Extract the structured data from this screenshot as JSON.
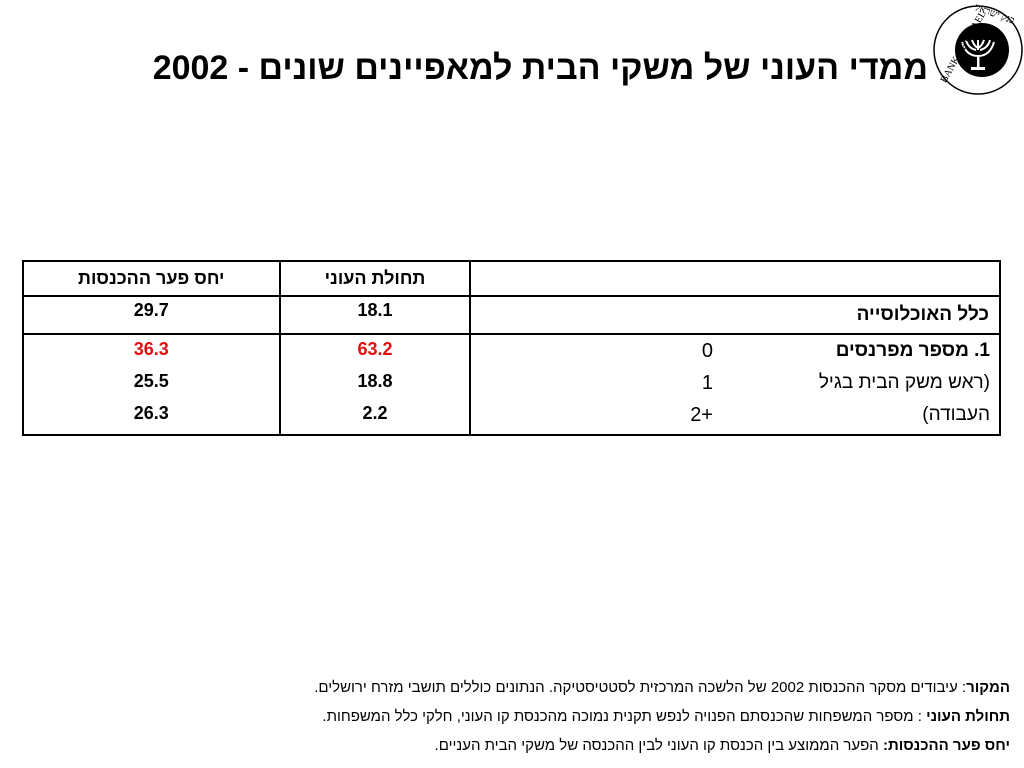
{
  "title": "ממדי העוני של משקי הבית למאפיינים שונים - 2002",
  "logo": {
    "text_top": "בנק ישראל",
    "text_bottom": "BANK OF ISRAEL",
    "icon": "menorah-icon"
  },
  "table": {
    "headers": {
      "label": "",
      "poverty_incidence": "תחולת העוני",
      "income_gap": "יחס פער ההכנסות"
    },
    "total_row": {
      "label": "כלל האוכלוסייה",
      "poverty_incidence": "18.1",
      "income_gap": "29.7"
    },
    "group": {
      "title_line1": "1. מספר מפרנסים",
      "title_line2": "(ראש משק הבית בגיל",
      "title_line3": "העבודה)",
      "rows": [
        {
          "earners": "0",
          "poverty_incidence": "63.2",
          "income_gap": "36.3",
          "highlight": true
        },
        {
          "earners": "1",
          "poverty_incidence": "18.8",
          "income_gap": "25.5",
          "highlight": false
        },
        {
          "earners": "2+",
          "poverty_incidence": "2.2",
          "income_gap": "26.3",
          "highlight": false
        }
      ]
    },
    "highlight_color": "#e01010"
  },
  "notes": [
    {
      "term": "המקור",
      "sep": ": ",
      "text": "עיבודים מסקר ההכנסות 2002 של הלשכה המרכזית לסטטיסטיקה. הנתונים כוללים תושבי מזרח ירושלים."
    },
    {
      "term": "תחולת העוני",
      "sep": " : ",
      "text": "מספר המשפחות שהכנסתם הפנויה לנפש תקנית נמוכה מהכנסת קו העוני, חלקי כלל המשפחות."
    },
    {
      "term": "יחס פער ההכנסות:",
      "sep": " ",
      "text": "הפער הממוצע בין הכנסת קו העוני לבין ההכנסה של משקי הבית העניים."
    }
  ]
}
